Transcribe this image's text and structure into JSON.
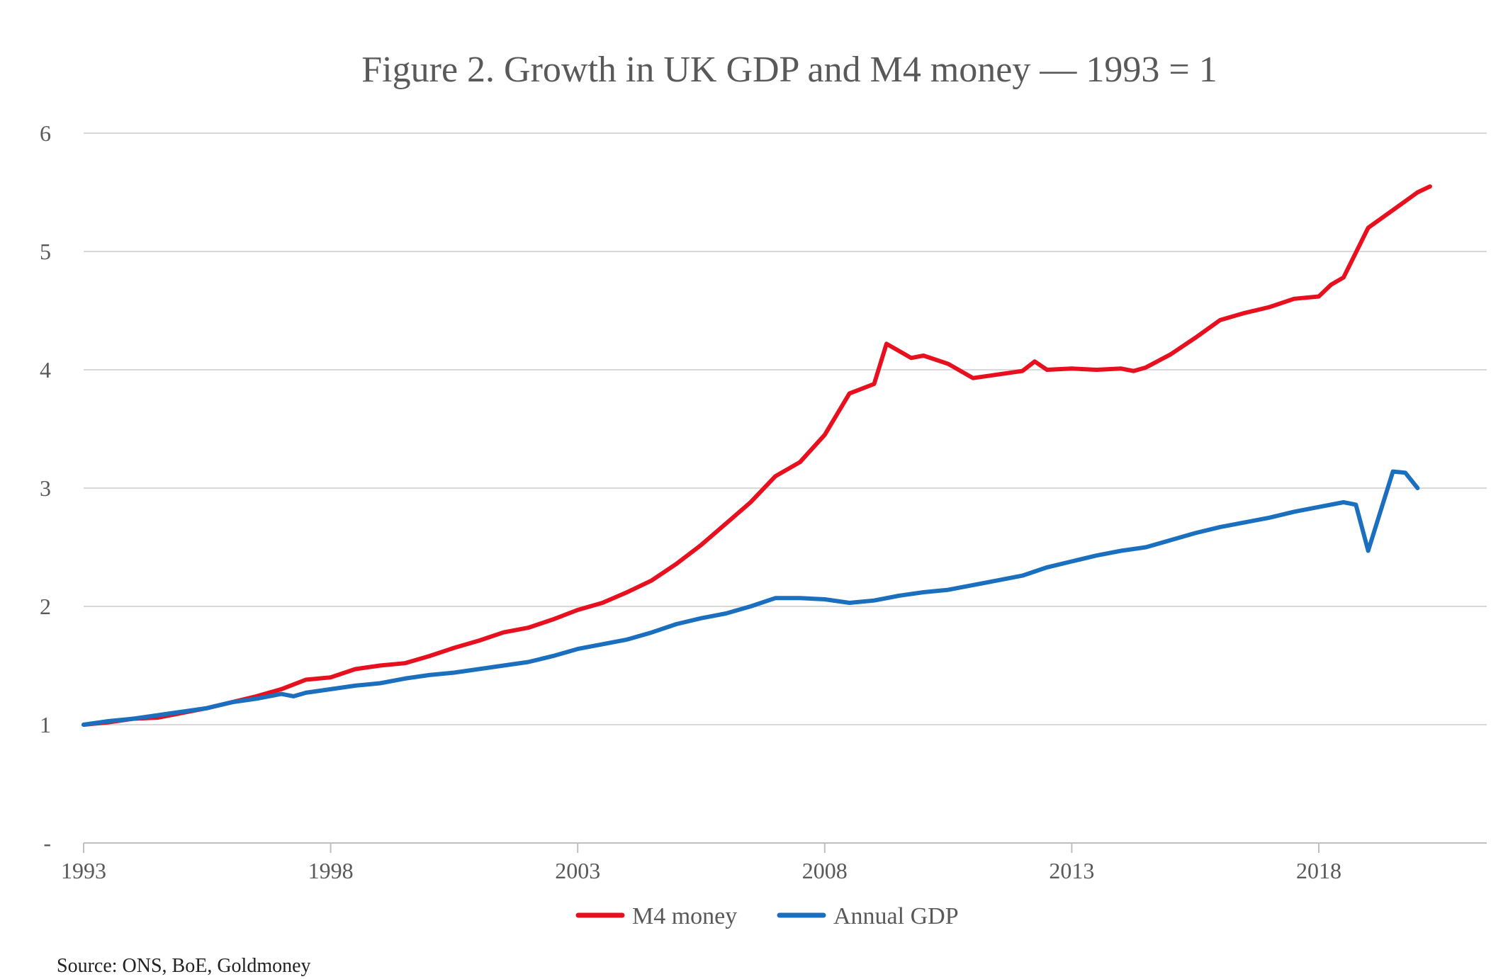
{
  "chart_data": {
    "type": "line",
    "title": "Figure 2. Growth in UK GDP and M4 money — 1993 = 1",
    "xlabel": "",
    "ylabel": "",
    "x_tick_labels": [
      "1993",
      "1998",
      "2003",
      "2008",
      "2013",
      "2018"
    ],
    "y_tick_labels": [
      "-",
      "1",
      "2",
      "3",
      "4",
      "5",
      "6"
    ],
    "ylim": [
      0,
      6
    ],
    "xlim": [
      1993,
      2021.5
    ],
    "grid": true,
    "legend_position": "bottom",
    "series": [
      {
        "name": "M4 money",
        "color": "#e8101e",
        "points": [
          [
            1993,
            1.0
          ],
          [
            1993.5,
            1.02
          ],
          [
            1994,
            1.05
          ],
          [
            1994.5,
            1.06
          ],
          [
            1995,
            1.1
          ],
          [
            1995.5,
            1.14
          ],
          [
            1996,
            1.19
          ],
          [
            1996.5,
            1.24
          ],
          [
            1997,
            1.3
          ],
          [
            1997.5,
            1.38
          ],
          [
            1998,
            1.4
          ],
          [
            1998.5,
            1.47
          ],
          [
            1999,
            1.5
          ],
          [
            1999.5,
            1.52
          ],
          [
            2000,
            1.58
          ],
          [
            2000.5,
            1.65
          ],
          [
            2001,
            1.71
          ],
          [
            2001.5,
            1.78
          ],
          [
            2002,
            1.82
          ],
          [
            2002.5,
            1.89
          ],
          [
            2003,
            1.97
          ],
          [
            2003.5,
            2.03
          ],
          [
            2004,
            2.12
          ],
          [
            2004.5,
            2.22
          ],
          [
            2005,
            2.36
          ],
          [
            2005.5,
            2.52
          ],
          [
            2006,
            2.7
          ],
          [
            2006.5,
            2.88
          ],
          [
            2007,
            3.1
          ],
          [
            2007.5,
            3.22
          ],
          [
            2008,
            3.45
          ],
          [
            2008.5,
            3.8
          ],
          [
            2009,
            3.88
          ],
          [
            2009.25,
            4.22
          ],
          [
            2009.75,
            4.1
          ],
          [
            2010,
            4.12
          ],
          [
            2010.5,
            4.05
          ],
          [
            2011,
            3.93
          ],
          [
            2011.5,
            3.96
          ],
          [
            2012,
            3.99
          ],
          [
            2012.25,
            4.07
          ],
          [
            2012.5,
            4.0
          ],
          [
            2013,
            4.01
          ],
          [
            2013.5,
            4.0
          ],
          [
            2014,
            4.01
          ],
          [
            2014.25,
            3.99
          ],
          [
            2014.5,
            4.02
          ],
          [
            2015,
            4.13
          ],
          [
            2015.5,
            4.27
          ],
          [
            2016,
            4.42
          ],
          [
            2016.5,
            4.48
          ],
          [
            2017,
            4.53
          ],
          [
            2017.5,
            4.6
          ],
          [
            2018,
            4.62
          ],
          [
            2018.25,
            4.72
          ],
          [
            2018.5,
            4.78
          ],
          [
            2019,
            5.2
          ],
          [
            2019.5,
            5.35
          ],
          [
            2020,
            5.5
          ],
          [
            2020.25,
            5.55
          ]
        ]
      },
      {
        "name": "Annual GDP",
        "color": "#1a6fbf",
        "points": [
          [
            1993,
            1.0
          ],
          [
            1993.5,
            1.03
          ],
          [
            1994,
            1.05
          ],
          [
            1994.5,
            1.08
          ],
          [
            1995,
            1.11
          ],
          [
            1995.5,
            1.14
          ],
          [
            1996,
            1.19
          ],
          [
            1996.5,
            1.22
          ],
          [
            1997,
            1.26
          ],
          [
            1997.25,
            1.24
          ],
          [
            1997.5,
            1.27
          ],
          [
            1998,
            1.3
          ],
          [
            1998.5,
            1.33
          ],
          [
            1999,
            1.35
          ],
          [
            1999.5,
            1.39
          ],
          [
            2000,
            1.42
          ],
          [
            2000.5,
            1.44
          ],
          [
            2001,
            1.47
          ],
          [
            2001.5,
            1.5
          ],
          [
            2002,
            1.53
          ],
          [
            2002.5,
            1.58
          ],
          [
            2003,
            1.64
          ],
          [
            2003.5,
            1.68
          ],
          [
            2004,
            1.72
          ],
          [
            2004.5,
            1.78
          ],
          [
            2005,
            1.85
          ],
          [
            2005.5,
            1.9
          ],
          [
            2006,
            1.94
          ],
          [
            2006.5,
            2.0
          ],
          [
            2007,
            2.07
          ],
          [
            2007.5,
            2.07
          ],
          [
            2008,
            2.06
          ],
          [
            2008.5,
            2.03
          ],
          [
            2009,
            2.05
          ],
          [
            2009.5,
            2.09
          ],
          [
            2010,
            2.12
          ],
          [
            2010.5,
            2.14
          ],
          [
            2011,
            2.18
          ],
          [
            2011.5,
            2.22
          ],
          [
            2012,
            2.26
          ],
          [
            2012.5,
            2.33
          ],
          [
            2013,
            2.38
          ],
          [
            2013.5,
            2.43
          ],
          [
            2014,
            2.47
          ],
          [
            2014.5,
            2.5
          ],
          [
            2015,
            2.56
          ],
          [
            2015.5,
            2.62
          ],
          [
            2016,
            2.67
          ],
          [
            2016.5,
            2.71
          ],
          [
            2017,
            2.75
          ],
          [
            2017.5,
            2.8
          ],
          [
            2018,
            2.84
          ],
          [
            2018.5,
            2.88
          ],
          [
            2018.75,
            2.86
          ],
          [
            2019,
            2.47
          ],
          [
            2019.5,
            3.14
          ],
          [
            2019.75,
            3.13
          ],
          [
            2020,
            3.0
          ]
        ]
      }
    ]
  },
  "source": "Source: ONS, BoE, Goldmoney"
}
